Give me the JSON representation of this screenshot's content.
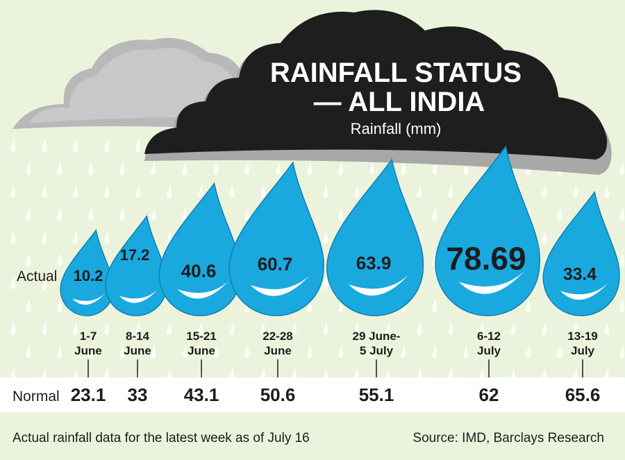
{
  "chart_data": {
    "type": "pictogram-bar",
    "title_line1": "RAINFALL STATUS",
    "title_line2": "— ALL INDIA",
    "subtitle": "Rainfall (mm)",
    "actual_label": "Actual",
    "normal_label": "Normal",
    "categories": [
      [
        "1-7",
        "June"
      ],
      [
        "8-14",
        "June"
      ],
      [
        "15-21",
        "June"
      ],
      [
        "22-28",
        "June"
      ],
      [
        "29 June-",
        "5 July"
      ],
      [
        "6-12",
        "July"
      ],
      [
        "13-19",
        "July"
      ]
    ],
    "series": [
      {
        "name": "Actual",
        "values": [
          10.2,
          17.2,
          40.6,
          60.7,
          63.9,
          78.69,
          33.4
        ]
      },
      {
        "name": "Normal",
        "values": [
          23.1,
          33,
          43.1,
          50.6,
          55.1,
          62,
          65.6
        ]
      }
    ],
    "footnote": "Actual rainfall data for the latest week as of July 16",
    "source": "Source: IMD, Barclays Research",
    "colors": {
      "drop": "#1aa9df",
      "drop_outline": "#0f7fb0",
      "cloud_dark": "#1e1e1e",
      "cloud_light": "#bfbfbf",
      "background": "#ecf3dc"
    }
  }
}
